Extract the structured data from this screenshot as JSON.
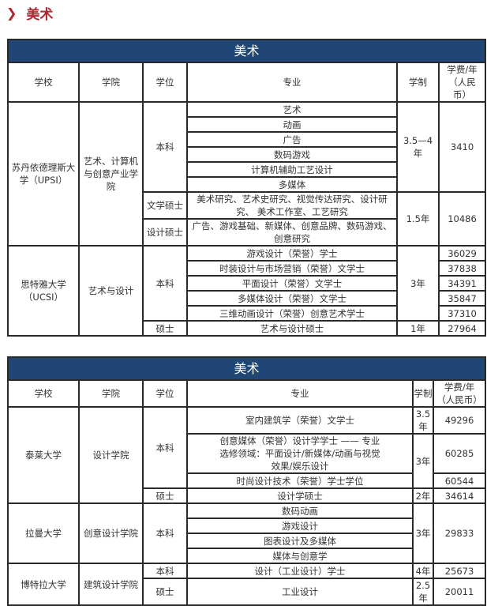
{
  "section_title": "美术",
  "colors": {
    "accent": "#b0252f",
    "table_header": "#1f4675"
  },
  "headers": {
    "school": "学校",
    "college": "学院",
    "degree": "学位",
    "major": "专业",
    "duration": "学制",
    "fee": "学费/年（人民币）"
  },
  "table1": {
    "title": "美术",
    "upsi": {
      "school": "苏丹依德理斯大学（UPSI）",
      "college": "艺术、计算机与创意产业学院",
      "bachelor": {
        "degree": "本科",
        "majors": [
          "艺术",
          "动画",
          "广告",
          "数码游戏",
          "计算机辅助工艺设计",
          "多媒体"
        ],
        "duration": "3.5—4年",
        "fee": "3410"
      },
      "ma": {
        "degree": "文学硕士",
        "major": "美术研究、艺术史研究、视觉传达研究、设计研究、 美术工作室、工艺研究"
      },
      "mdes": {
        "degree": "设计硕士",
        "major": "广告、游戏基础、新媒体、创意品牌、数码游戏、创意研究"
      },
      "master_duration": "1.5年",
      "master_fee": "10486"
    },
    "ucsi": {
      "school": "思特雅大学（UCSI）",
      "college": "艺术与设计",
      "bachelor": {
        "degree": "本科",
        "duration": "3年",
        "programs": [
          {
            "major": "游戏设计（荣誉）学士",
            "fee": "36029"
          },
          {
            "major": "时装设计与市场营销（荣誉）文学士",
            "fee": "37838"
          },
          {
            "major": "平面设计（荣誉）文学士",
            "fee": "34391"
          },
          {
            "major": "多媒体设计（荣誉）文学士",
            "fee": "35847"
          },
          {
            "major": "三维动画设计（荣誉）创意艺术学士",
            "fee": "37310"
          }
        ]
      },
      "master": {
        "degree": "硕士",
        "major": "艺术与设计硕士",
        "duration": "1年",
        "fee": "27964"
      }
    }
  },
  "table2": {
    "title": "美术",
    "taylors": {
      "school": "泰莱大学",
      "college": "设计学院",
      "bachelor_degree": "本科",
      "programs": [
        {
          "major": "室内建筑学（荣誉）文学士",
          "duration": "3.5年",
          "fee": "49296"
        },
        {
          "major": "创意媒体（荣誉）设计学学士 —— 专业选修领域：平面设计/新媒体/动画与视觉效果/娱乐设计",
          "fee": "60285"
        },
        {
          "major": "时尚设计技术（荣誉）学士学位",
          "fee": "60544"
        }
      ],
      "duration_3": "3年",
      "master": {
        "degree": "硕士",
        "major": "设计学硕士",
        "duration": "2年",
        "fee": "34614"
      }
    },
    "utar": {
      "school": "拉曼大学",
      "college": "创意设计学院",
      "degree": "本科",
      "majors": [
        "数码动画",
        "游戏设计",
        "图表设计及多媒体",
        "媒体与创意学"
      ],
      "duration": "3年",
      "fee": "29833"
    },
    "upm": {
      "school": "博特拉大学",
      "college": "建筑设计学院",
      "bachelor": {
        "degree": "本科",
        "major": "设计（工业设计）学士",
        "duration": "4年",
        "fee": "25673"
      },
      "master": {
        "degree": "硕士",
        "major": "工业设计",
        "duration": "2.5年",
        "fee": "20011"
      }
    }
  }
}
